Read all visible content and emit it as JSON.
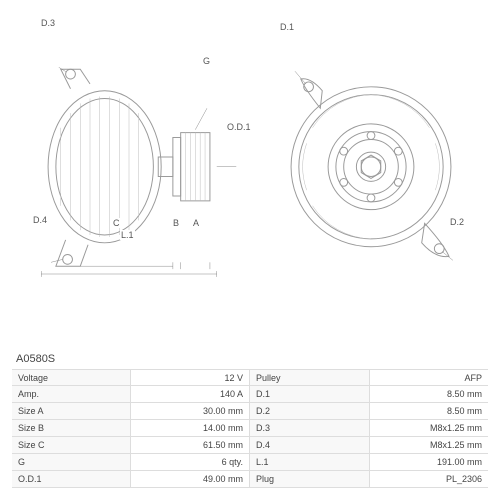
{
  "part_number": "A0580S",
  "diagram": {
    "left_labels": {
      "d3": "D.3",
      "d4": "D.4",
      "g": "G",
      "od1": "O.D.1",
      "c": "C",
      "b": "B",
      "a": "A",
      "l1": "L.1"
    },
    "right_labels": {
      "d1": "D.1",
      "d2": "D.2"
    },
    "style": {
      "outline_color": "#999999",
      "hatch_color": "#bbbbbb",
      "dim_color": "#888888",
      "label_color": "#555555",
      "label_fontsize": 9
    }
  },
  "specs": {
    "left": [
      {
        "label": "Voltage",
        "value": "12 V"
      },
      {
        "label": "Amp.",
        "value": "140 A"
      },
      {
        "label": "Size A",
        "value": "30.00 mm"
      },
      {
        "label": "Size B",
        "value": "14.00 mm"
      },
      {
        "label": "Size C",
        "value": "61.50 mm"
      },
      {
        "label": "G",
        "value": "6 qty."
      },
      {
        "label": "O.D.1",
        "value": "49.00 mm"
      }
    ],
    "right": [
      {
        "label": "Pulley",
        "value": "AFP"
      },
      {
        "label": "D.1",
        "value": "8.50 mm"
      },
      {
        "label": "D.2",
        "value": "8.50 mm"
      },
      {
        "label": "D.3",
        "value": "M8x1.25 mm"
      },
      {
        "label": "D.4",
        "value": "M8x1.25 mm"
      },
      {
        "label": "L.1",
        "value": "191.00 mm"
      },
      {
        "label": "Plug",
        "value": "PL_2306"
      }
    ]
  },
  "table_style": {
    "border_color": "#dddddd",
    "label_bg": "#f8f8f8",
    "text_color": "#444444",
    "fontsize": 9
  }
}
